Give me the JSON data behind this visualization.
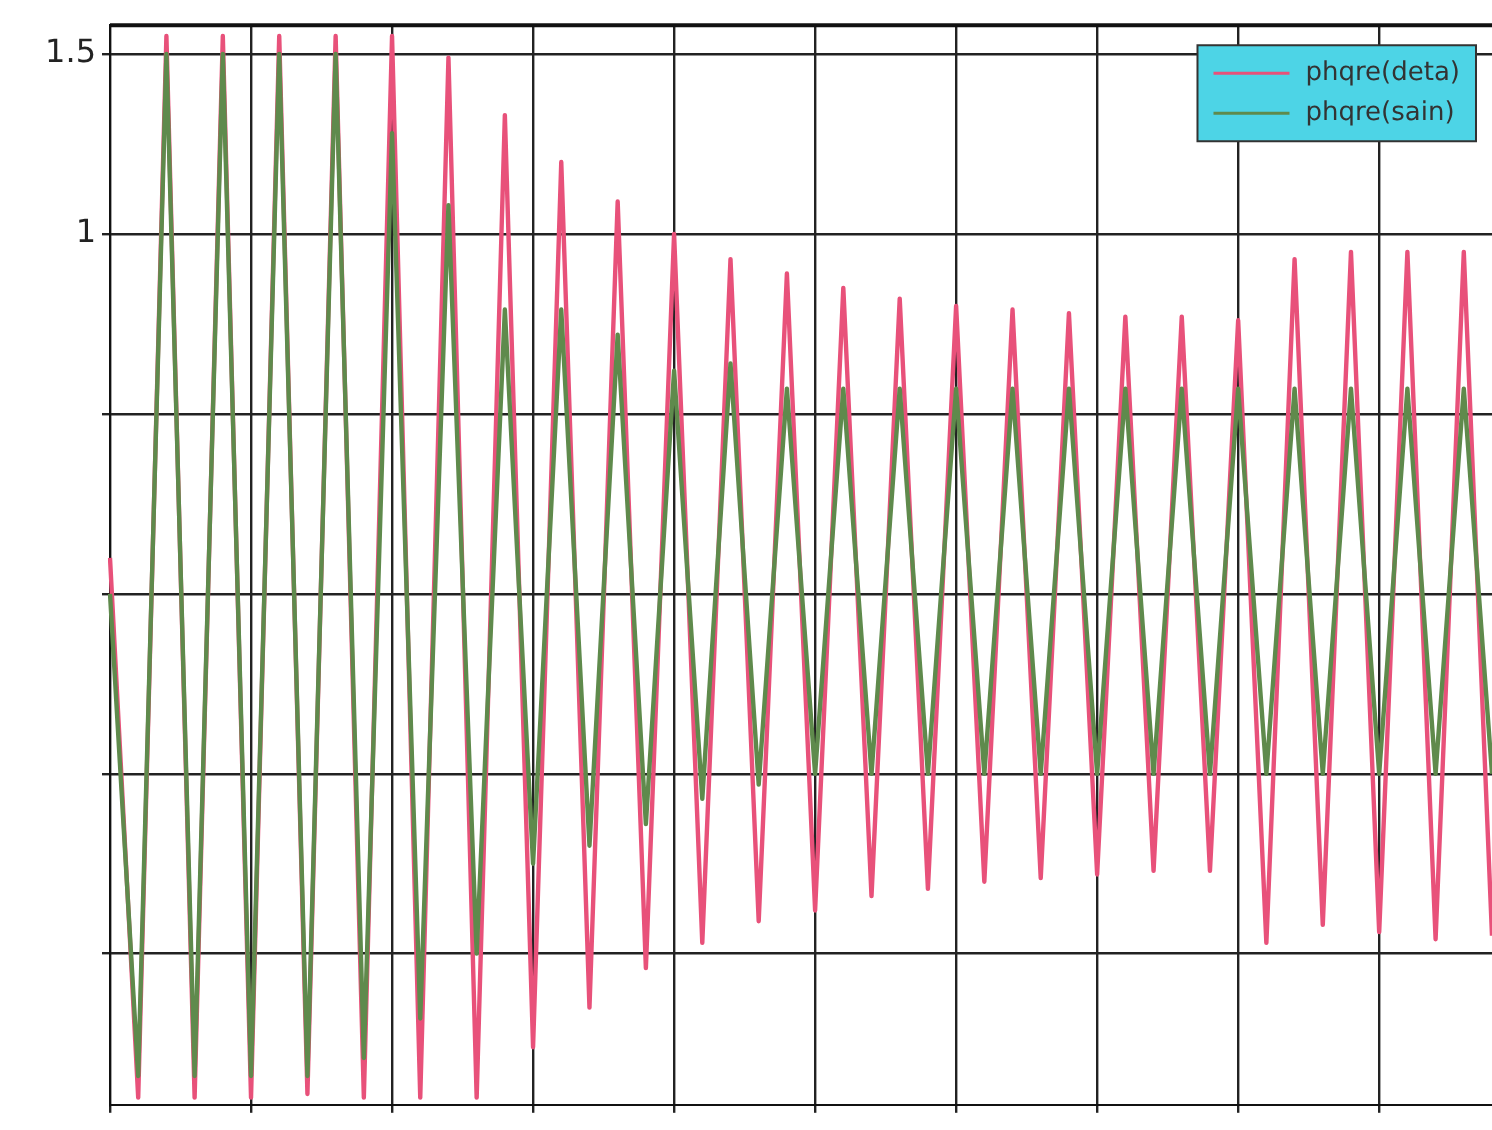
{
  "chart_data": {
    "type": "line",
    "categories": [
      null,
      null,
      null,
      null,
      null,
      null,
      null,
      null,
      null,
      null,
      null,
      null,
      null,
      null,
      null,
      null,
      null,
      null,
      null,
      null,
      null,
      null,
      null,
      null,
      null,
      null,
      null,
      null,
      null,
      null,
      null,
      null,
      null,
      null,
      null,
      null,
      null,
      null,
      null,
      null,
      null,
      null,
      null,
      null,
      null,
      null,
      null,
      null,
      null,
      null
    ],
    "series": [
      {
        "name": "phqre(deta)",
        "color": "#e8517a",
        "values": [
          0.1,
          -1.4,
          1.55,
          -1.4,
          1.55,
          -1.4,
          1.55,
          -1.39,
          1.55,
          -1.4,
          1.55,
          -1.4,
          1.49,
          -1.4,
          1.33,
          -1.26,
          1.2,
          -1.15,
          1.09,
          -1.04,
          1.0,
          -0.97,
          0.93,
          -0.91,
          0.89,
          -0.88,
          0.85,
          -0.84,
          0.82,
          -0.82,
          0.8,
          -0.8,
          0.79,
          -0.79,
          0.78,
          -0.78,
          0.77,
          -0.77,
          0.77,
          -0.77,
          0.76,
          -0.97,
          0.93,
          -0.92,
          0.95,
          -0.94,
          0.95,
          -0.96,
          0.95,
          -0.95
        ]
      },
      {
        "name": "phqre(sain)",
        "color": "#5f8a4c",
        "values": [
          0,
          -1.34,
          1.5,
          -1.34,
          1.5,
          -1.34,
          1.5,
          -1.34,
          1.5,
          -1.29,
          1.28,
          -1.18,
          1.08,
          -1.0,
          0.79,
          -0.75,
          0.79,
          -0.7,
          0.72,
          -0.64,
          0.62,
          -0.57,
          0.64,
          -0.53,
          0.57,
          -0.5,
          0.57,
          -0.5,
          0.57,
          -0.5,
          0.57,
          -0.5,
          0.57,
          -0.5,
          0.57,
          -0.5,
          0.57,
          -0.5,
          0.57,
          -0.5,
          0.57,
          -0.5,
          0.57,
          -0.5,
          0.57,
          -0.5,
          0.57,
          -0.5,
          0.57,
          -0.5
        ]
      }
    ],
    "ylim": [
      -1.42,
      1.58
    ],
    "yticks": [
      {
        "value": -1,
        "label": null
      },
      {
        "value": -0.5,
        "label": null
      },
      {
        "value": 0,
        "label": null
      },
      {
        "value": 0.5,
        "label": null
      },
      1,
      1.5
    ],
    "tick_labels": "y",
    "grid": true,
    "legend": "top right"
  }
}
